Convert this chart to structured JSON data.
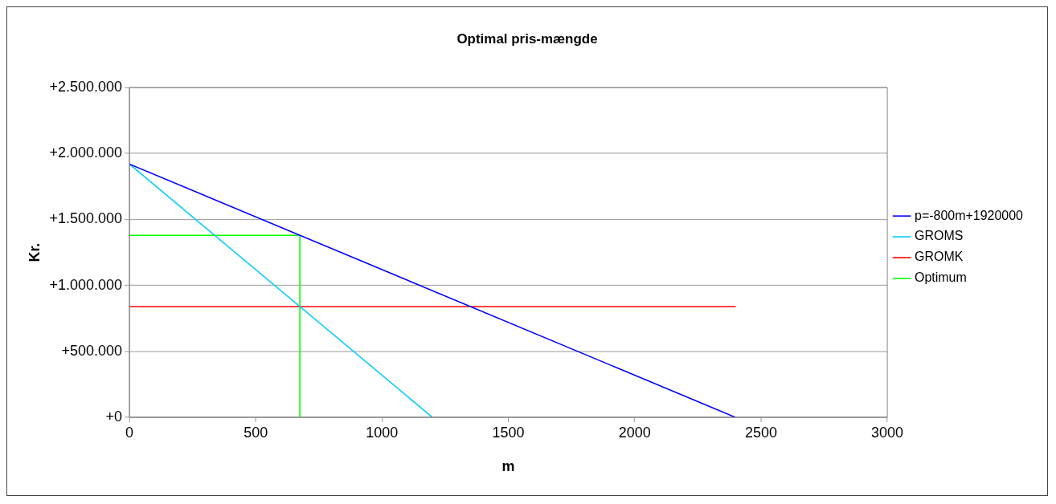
{
  "chart_data": {
    "type": "line",
    "title": "Optimal pris-mængde",
    "xlabel": "m",
    "ylabel": "Kr.",
    "xlim": [
      0,
      3000
    ],
    "xticks": [
      0,
      500,
      1000,
      1500,
      2000,
      2500,
      3000
    ],
    "ylim": [
      0,
      2500000
    ],
    "yticks": [
      {
        "value": 0,
        "label": "+0"
      },
      {
        "value": 500000,
        "label": "+500.000"
      },
      {
        "value": 1000000,
        "label": "+1.000.000"
      },
      {
        "value": 1500000,
        "label": "+1.500.000"
      },
      {
        "value": 2000000,
        "label": "+2.000.000"
      },
      {
        "value": 2500000,
        "label": "+2.500.000"
      }
    ],
    "grid": "y",
    "legend": "right",
    "marker": "none",
    "line_style": "solid",
    "series": [
      {
        "name": "p=-800m+1920000",
        "color": "#0000ff",
        "x": [
          0,
          2400
        ],
        "values": [
          1920000,
          0
        ]
      },
      {
        "name": "GROMS",
        "color": "#00ccff",
        "x": [
          0,
          1200
        ],
        "values": [
          1920000,
          0
        ]
      },
      {
        "name": "GROMK",
        "color": "#ff0000",
        "x": [
          0,
          2400
        ],
        "values": [
          840000,
          840000
        ]
      },
      {
        "name": "Optimum",
        "color": "#00ff00",
        "x": [
          0,
          675,
          675
        ],
        "values": [
          1380000,
          1380000,
          0
        ]
      }
    ]
  }
}
